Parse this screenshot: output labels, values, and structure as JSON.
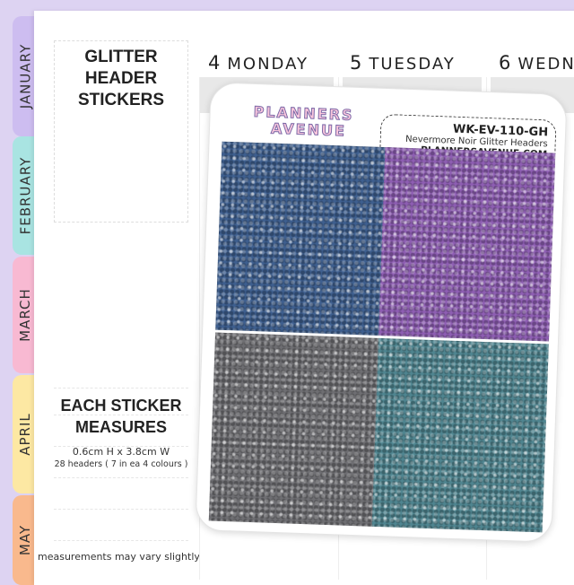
{
  "tabs": [
    {
      "label": "JANUARY",
      "color": "#cdbdf0"
    },
    {
      "label": "FEBRUARY",
      "color": "#a9e4e2"
    },
    {
      "label": "MARCH",
      "color": "#f8b9d2"
    },
    {
      "label": "APRIL",
      "color": "#fde8a3"
    },
    {
      "label": "MAY",
      "color": "#f9b98d"
    }
  ],
  "panel": {
    "title_line1": "GLITTER",
    "title_line2": "HEADER",
    "title_line3": "STICKERS"
  },
  "measures": {
    "title_line1": "EACH STICKER",
    "title_line2": "MEASURES",
    "size": "0.6cm H  x  3.8cm W",
    "count": "28 headers ( 7 in ea 4 colours )",
    "note": "measurements may vary slightly"
  },
  "days": [
    {
      "num": "4",
      "name": "MONDAY"
    },
    {
      "num": "5",
      "name": "TUESDAY"
    },
    {
      "num": "6",
      "name": "WEDN"
    }
  ],
  "sheet": {
    "logo_line1": "PLANNERS",
    "logo_line2": "AVENUE",
    "code": "WK-EV-110-GH",
    "name": "Nevermore Noir Glitter Headers",
    "website": "PLANNERSAVENUE.COM",
    "glitter_colors": [
      "#3e5f8f",
      "#8e5eb3",
      "#6e6e72",
      "#4f8590"
    ]
  }
}
